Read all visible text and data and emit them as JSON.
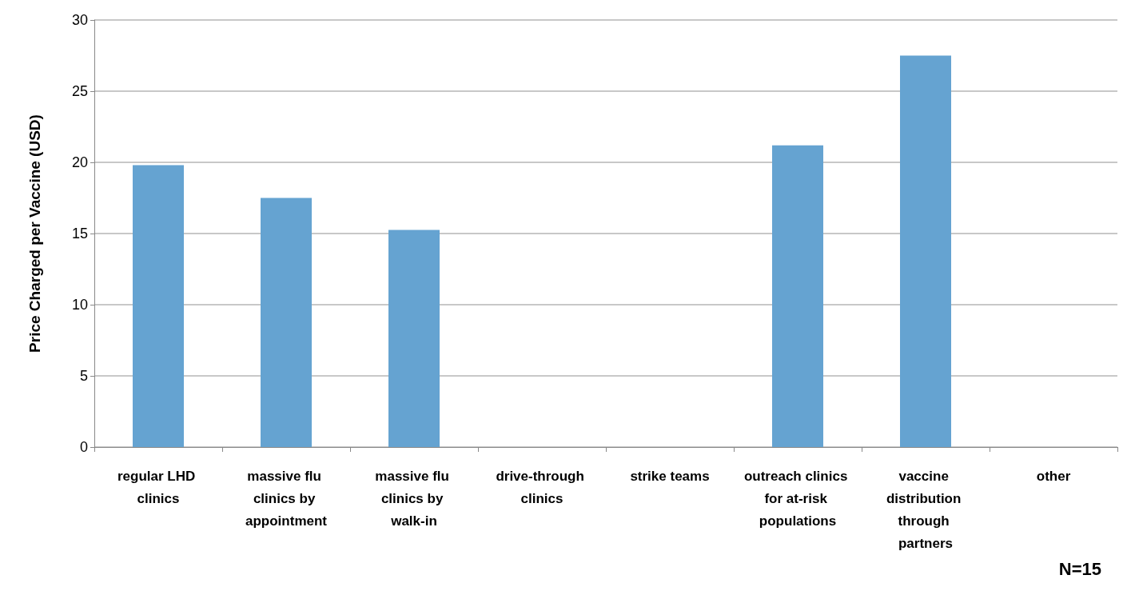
{
  "chart_data": {
    "type": "bar",
    "ylabel": "Price Charged per Vaccine (USD)",
    "categories": [
      "regular LHD clinics",
      "massive flu clinics by appointment",
      "massive flu clinics by walk-in",
      "drive-through clinics",
      "strike teams",
      "outreach clinics for at-risk populations",
      "vaccine distribution through partners",
      "other"
    ],
    "values": [
      19.8,
      17.5,
      15.25,
      0,
      0,
      21.2,
      27.5,
      0
    ],
    "color": "#65a3d1",
    "ylim": [
      0,
      30
    ],
    "yticks": [
      0,
      5,
      10,
      15,
      20,
      25,
      30
    ],
    "grid": "y",
    "annotations": [
      "N=15"
    ]
  }
}
